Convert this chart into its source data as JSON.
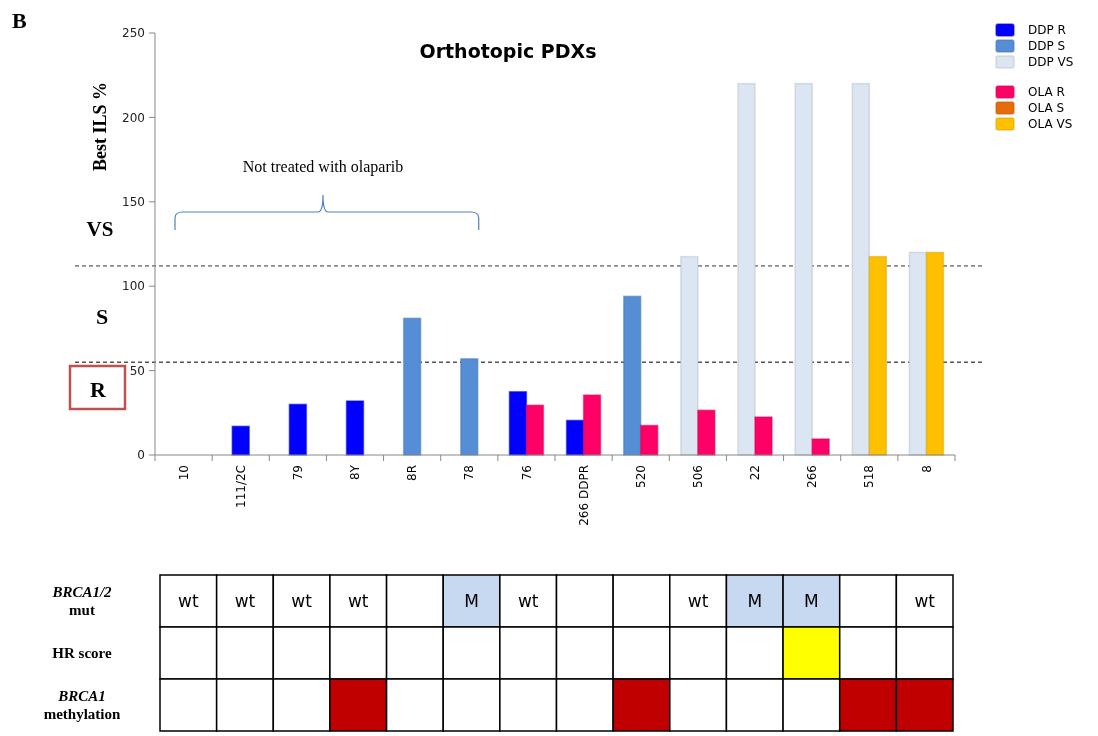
{
  "chart_data": [
    {
      "type": "bar",
      "title": "Orthotopic PDXs",
      "ylabel": "Best ILS %",
      "categories": [
        "10",
        "111/2C",
        "79",
        "8Y",
        "8R",
        "78",
        "76",
        "266 DDPR",
        "520",
        "506",
        "22",
        "266",
        "518",
        "8"
      ],
      "ylim": [
        0,
        250
      ],
      "yticks": [
        0,
        50,
        100,
        150,
        200,
        250
      ],
      "grid": false,
      "legend": "top right",
      "series": [
        {
          "name": "DDP R",
          "color": "#0000ff",
          "values": [
            null,
            17,
            30,
            32,
            null,
            null,
            37.5,
            20.5,
            null,
            null,
            null,
            null,
            null,
            null
          ]
        },
        {
          "name": "DDP S",
          "color": "#558ed5",
          "values": [
            null,
            null,
            null,
            null,
            81,
            57,
            null,
            null,
            94,
            null,
            null,
            null,
            null,
            null
          ]
        },
        {
          "name": "DDP VS",
          "color": "#dce6f2",
          "values": [
            null,
            null,
            null,
            null,
            null,
            null,
            null,
            null,
            null,
            117.5,
            220,
            220,
            220,
            120
          ]
        },
        {
          "name": "OLA R",
          "color": "#ff0066",
          "values": [
            null,
            null,
            null,
            null,
            null,
            null,
            29.5,
            35.5,
            17.5,
            26.5,
            22.5,
            9.5,
            null,
            null
          ]
        },
        {
          "name": "OLA S",
          "color": "#e46c0a",
          "values": [
            null,
            null,
            null,
            null,
            null,
            null,
            null,
            null,
            null,
            null,
            null,
            null,
            null,
            null
          ]
        },
        {
          "name": "OLA VS",
          "color": "#ffc000",
          "values": [
            null,
            null,
            null,
            null,
            null,
            null,
            null,
            null,
            null,
            null,
            null,
            null,
            117.5,
            120
          ]
        }
      ],
      "ref_lines": [
        {
          "axis": "y",
          "value": 112,
          "line_style": "dashed",
          "color": "#333333"
        },
        {
          "axis": "y",
          "value": 55,
          "line_style": "dashed",
          "color": "#000000"
        }
      ],
      "annotations": [
        "B",
        "VS",
        "S",
        "R",
        "Not treated with olaparib"
      ]
    },
    {
      "type": "heatmap",
      "categories": [
        null,
        null,
        null,
        null,
        null,
        null,
        null,
        null,
        null,
        null,
        null,
        null,
        null,
        null
      ],
      "y_categories": [
        "BRCA1/2 mut",
        "HR score",
        "BRCA1 methylation"
      ],
      "cells": [
        [
          "wt",
          "wt",
          "wt",
          "wt",
          null,
          "M",
          "wt",
          null,
          null,
          "wt",
          "M",
          "M",
          null,
          "wt"
        ],
        [
          null,
          null,
          null,
          null,
          null,
          null,
          null,
          null,
          null,
          null,
          null,
          null,
          null,
          null
        ],
        [
          null,
          null,
          null,
          null,
          null,
          null,
          null,
          null,
          null,
          null,
          null,
          null,
          null,
          null
        ]
      ],
      "colors": [
        [
          "#ffffff",
          "#ffffff",
          "#ffffff",
          "#ffffff",
          "#ffffff",
          "#c6d9f1",
          "#ffffff",
          "#ffffff",
          "#ffffff",
          "#ffffff",
          "#c6d9f1",
          "#c6d9f1",
          "#ffffff",
          "#ffffff"
        ],
        [
          "#ffffff",
          "#ffffff",
          "#ffffff",
          "#ffffff",
          "#ffffff",
          "#ffffff",
          "#ffffff",
          "#ffffff",
          "#ffffff",
          "#ffffff",
          "#ffffff",
          "#ffff00",
          "#ffffff",
          "#ffffff"
        ],
        [
          "#ffffff",
          "#ffffff",
          "#ffffff",
          "#c00000",
          "#ffffff",
          "#ffffff",
          "#ffffff",
          "#ffffff",
          "#c00000",
          "#ffffff",
          "#ffffff",
          "#ffffff",
          "#c00000",
          "#c00000"
        ]
      ]
    }
  ]
}
